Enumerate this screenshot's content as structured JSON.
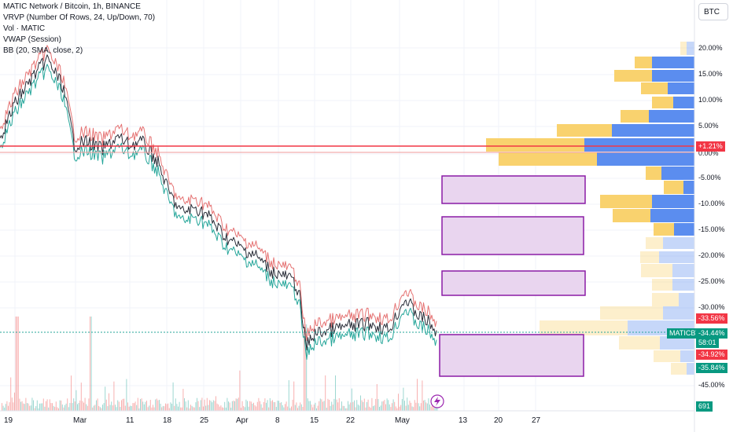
{
  "legend": {
    "title": "MATIC Network / Bitcoin, 1h, BINANCE",
    "indicators": [
      "VRVP (Number Of Rows, 24, Up/Down, 70)",
      "Vol · MATIC",
      "VWAP (Session)",
      "BB (20, SMA, close, 2)"
    ]
  },
  "currency_button": "BTC",
  "price_axis": {
    "ticks": [
      "20.00%",
      "15.00%",
      "10.00%",
      "5.00%",
      "0.00%",
      "-5.00%",
      "-10.00%",
      "-15.00%",
      "-20.00%",
      "-25.00%",
      "-30.00%",
      "-45.00%"
    ],
    "tags": {
      "current_change": "+1.21%",
      "level_a": "-33.56%",
      "last_price": "-34.44%",
      "countdown": "58:01",
      "level_b": "-34.92%",
      "level_c": "-35.84%",
      "volume": "691",
      "symbol": "MATICBTC"
    }
  },
  "time_axis": {
    "labels": [
      "19",
      "Mar",
      "11",
      "18",
      "25",
      "Apr",
      "8",
      "15",
      "22",
      "May",
      "13",
      "20",
      "27"
    ]
  },
  "colors": {
    "up": "#26a69a",
    "down": "#ef5350",
    "vp_up": "#5b8def",
    "vp_down": "#f9d26e",
    "rect_fill": "#e9d5ef",
    "rect_border": "#8b1ca6",
    "hline": "#f23645"
  },
  "icons": [
    "lightning-icon"
  ]
}
